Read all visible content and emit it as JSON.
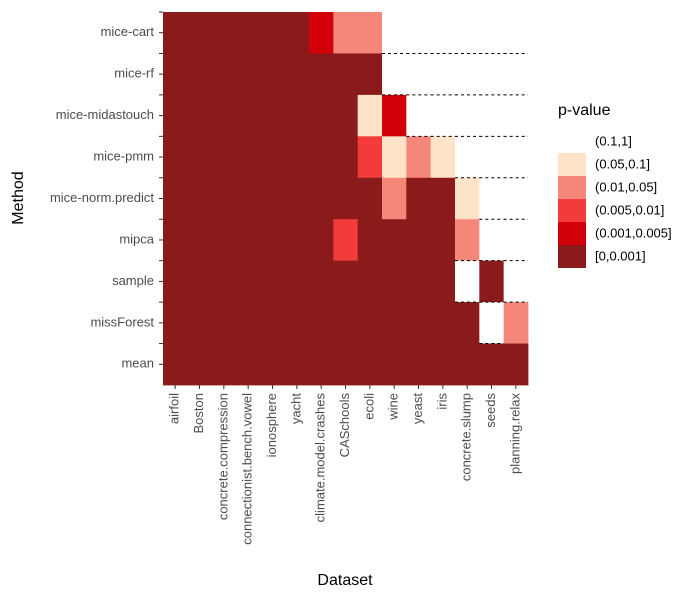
{
  "chart_data": {
    "type": "heatmap",
    "x_label": "Dataset",
    "y_label": "Method",
    "legend_title": "p-value",
    "x_categories": [
      "airfoil",
      "Boston",
      "concrete.compression",
      "connectionist.bench.vowel",
      "ionosphere",
      "yacht",
      "climate.model.crashes",
      "CASchools",
      "ecoli",
      "wine",
      "yeast",
      "iris",
      "concrete.slump",
      "seeds",
      "planning.relax"
    ],
    "y_categories": [
      "mice-cart",
      "mice-rf",
      "mice-midastouch",
      "mice-pmm",
      "mice-norm.predict",
      "mipca",
      "sample",
      "missForest",
      "mean"
    ],
    "levels": [
      {
        "label": "(0.1,1]",
        "color": "#ffffff"
      },
      {
        "label": "(0.05,0.1]",
        "color": "#fde3c8"
      },
      {
        "label": "(0.01,0.05]",
        "color": "#f5877a"
      },
      {
        "label": "(0.005,0.01]",
        "color": "#f43b3b"
      },
      {
        "label": "(0.001,0.005]",
        "color": "#d20009"
      },
      {
        "label": "[0,0.001]",
        "color": "#8b1a1a"
      }
    ],
    "cells": [
      [
        "[0,0.001]",
        "[0,0.001]",
        "[0,0.001]",
        "[0,0.001]",
        "[0,0.001]",
        "[0,0.001]",
        "(0.001,0.005]",
        "(0.01,0.05]",
        "(0.01,0.05]",
        "(0.1,1]",
        "(0.1,1]",
        "(0.1,1]",
        "(0.1,1]",
        "(0.1,1]",
        "(0.1,1]"
      ],
      [
        "[0,0.001]",
        "[0,0.001]",
        "[0,0.001]",
        "[0,0.001]",
        "[0,0.001]",
        "[0,0.001]",
        "[0,0.001]",
        "[0,0.001]",
        "[0,0.001]",
        "(0.1,1]",
        "(0.1,1]",
        "(0.1,1]",
        "(0.1,1]",
        "(0.1,1]",
        "(0.1,1]"
      ],
      [
        "[0,0.001]",
        "[0,0.001]",
        "[0,0.001]",
        "[0,0.001]",
        "[0,0.001]",
        "[0,0.001]",
        "[0,0.001]",
        "[0,0.001]",
        "(0.05,0.1]",
        "(0.001,0.005]",
        "(0.1,1]",
        "(0.1,1]",
        "(0.1,1]",
        "(0.1,1]",
        "(0.1,1]"
      ],
      [
        "[0,0.001]",
        "[0,0.001]",
        "[0,0.001]",
        "[0,0.001]",
        "[0,0.001]",
        "[0,0.001]",
        "[0,0.001]",
        "[0,0.001]",
        "(0.005,0.01]",
        "(0.05,0.1]",
        "(0.01,0.05]",
        "(0.05,0.1]",
        "(0.1,1]",
        "(0.1,1]",
        "(0.1,1]"
      ],
      [
        "[0,0.001]",
        "[0,0.001]",
        "[0,0.001]",
        "[0,0.001]",
        "[0,0.001]",
        "[0,0.001]",
        "[0,0.001]",
        "[0,0.001]",
        "[0,0.001]",
        "(0.01,0.05]",
        "[0,0.001]",
        "[0,0.001]",
        "(0.05,0.1]",
        "(0.1,1]",
        "(0.1,1]"
      ],
      [
        "[0,0.001]",
        "[0,0.001]",
        "[0,0.001]",
        "[0,0.001]",
        "[0,0.001]",
        "[0,0.001]",
        "[0,0.001]",
        "(0.005,0.01]",
        "[0,0.001]",
        "[0,0.001]",
        "[0,0.001]",
        "[0,0.001]",
        "(0.01,0.05]",
        "(0.1,1]",
        "(0.1,1]"
      ],
      [
        "[0,0.001]",
        "[0,0.001]",
        "[0,0.001]",
        "[0,0.001]",
        "[0,0.001]",
        "[0,0.001]",
        "[0,0.001]",
        "[0,0.001]",
        "[0,0.001]",
        "[0,0.001]",
        "[0,0.001]",
        "[0,0.001]",
        "(0.1,1]",
        "[0,0.001]",
        "(0.1,1]"
      ],
      [
        "[0,0.001]",
        "[0,0.001]",
        "[0,0.001]",
        "[0,0.001]",
        "[0,0.001]",
        "[0,0.001]",
        "[0,0.001]",
        "[0,0.001]",
        "[0,0.001]",
        "[0,0.001]",
        "[0,0.001]",
        "[0,0.001]",
        "[0,0.001]",
        "(0.1,1]",
        "(0.01,0.05]"
      ],
      [
        "[0,0.001]",
        "[0,0.001]",
        "[0,0.001]",
        "[0,0.001]",
        "[0,0.001]",
        "[0,0.001]",
        "[0,0.001]",
        "[0,0.001]",
        "[0,0.001]",
        "[0,0.001]",
        "[0,0.001]",
        "[0,0.001]",
        "[0,0.001]",
        "[0,0.001]",
        "[0,0.001]"
      ]
    ]
  }
}
